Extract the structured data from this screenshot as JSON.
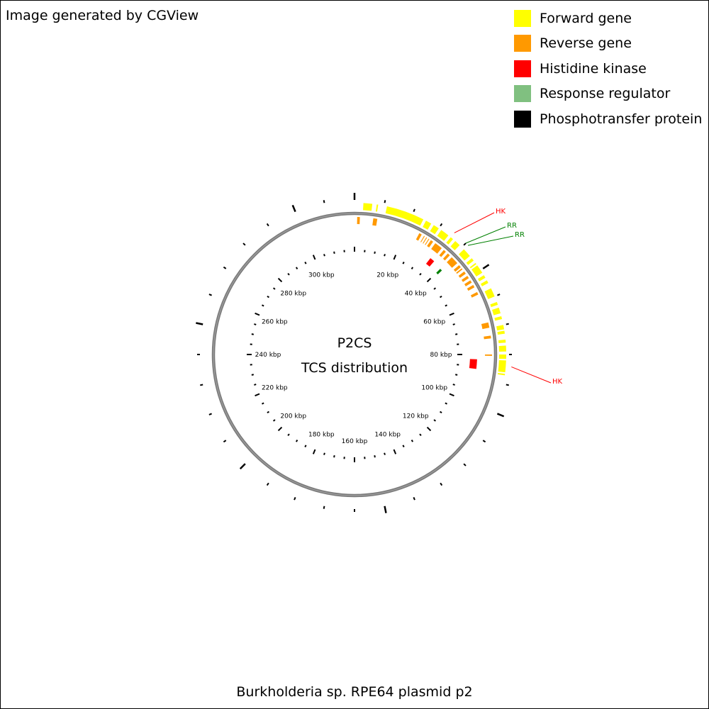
{
  "header": {
    "text": "Image generated by CGView"
  },
  "footer": {
    "text": "Burkholderia sp. RPE64 plasmid p2"
  },
  "center": {
    "line1": "P2CS",
    "line2": "TCS distribution"
  },
  "legend": [
    {
      "label": "Forward gene",
      "color": "#ffff00"
    },
    {
      "label": "Reverse gene",
      "color": "#ff9900"
    },
    {
      "label": "Histidine kinase",
      "color": "#ff0000"
    },
    {
      "label": "Response regulator",
      "color": "#80c080"
    },
    {
      "label": "Phosphotransfer protein",
      "color": "#000000"
    }
  ],
  "map": {
    "sequence_length_kbp": 320,
    "ruler_labels": [
      {
        "kbp": 20,
        "text": "20 kbp"
      },
      {
        "kbp": 40,
        "text": "40 kbp"
      },
      {
        "kbp": 60,
        "text": "60 kbp"
      },
      {
        "kbp": 80,
        "text": "80 kbp"
      },
      {
        "kbp": 100,
        "text": "100 kbp"
      },
      {
        "kbp": 120,
        "text": "120 kbp"
      },
      {
        "kbp": 140,
        "text": "140 kbp"
      },
      {
        "kbp": 160,
        "text": "160 kbp"
      },
      {
        "kbp": 180,
        "text": "180 kbp"
      },
      {
        "kbp": 200,
        "text": "200 kbp"
      },
      {
        "kbp": 220,
        "text": "220 kbp"
      },
      {
        "kbp": 240,
        "text": "240 kbp"
      },
      {
        "kbp": 260,
        "text": "260 kbp"
      },
      {
        "kbp": 280,
        "text": "280 kbp"
      },
      {
        "kbp": 300,
        "text": "300 kbp"
      }
    ],
    "forward_genes_kbp": [
      [
        3,
        6
      ],
      [
        7.5,
        8
      ],
      [
        11,
        24
      ],
      [
        25,
        27
      ],
      [
        28,
        30
      ],
      [
        31,
        34
      ],
      [
        35,
        36
      ],
      [
        37,
        39
      ],
      [
        41,
        44
      ],
      [
        45,
        46
      ],
      [
        47,
        47.5
      ],
      [
        48,
        51
      ],
      [
        52,
        53
      ],
      [
        54,
        55
      ],
      [
        57,
        60
      ],
      [
        62,
        63
      ],
      [
        64,
        66
      ],
      [
        67,
        68
      ],
      [
        70,
        71.5
      ],
      [
        72,
        73
      ],
      [
        75,
        76
      ],
      [
        77,
        79
      ],
      [
        80,
        81.5
      ],
      [
        82,
        86
      ],
      [
        86.5,
        87
      ]
    ],
    "reverse_genes_kbp": [
      [
        1,
        2
      ],
      [
        7,
        8.5
      ],
      [
        25,
        26
      ],
      [
        27,
        27.3
      ],
      [
        28,
        28.3
      ],
      [
        29,
        29.3
      ],
      [
        30,
        31
      ],
      [
        32,
        35
      ],
      [
        36,
        37
      ],
      [
        38,
        39
      ],
      [
        40,
        43
      ],
      [
        44,
        45
      ],
      [
        45.5,
        46
      ],
      [
        47,
        48
      ],
      [
        49,
        50
      ],
      [
        51,
        52
      ],
      [
        53,
        54
      ],
      [
        56,
        57
      ],
      [
        68,
        70
      ],
      [
        73,
        74
      ],
      [
        80,
        80.5
      ]
    ],
    "histidine_kinase_kbp": [
      [
        34,
        36
      ],
      [
        82,
        86
      ]
    ],
    "response_regulator_kbp": [
      [
        40,
        41
      ]
    ],
    "callouts": [
      {
        "label": "HK",
        "kbp": 35,
        "color": "#ff0000"
      },
      {
        "label": "RR",
        "kbp": 40,
        "color": "#008000"
      },
      {
        "label": "RR",
        "kbp": 41,
        "color": "#008000"
      },
      {
        "label": "HK",
        "kbp": 84,
        "color": "#ff0000"
      }
    ]
  }
}
